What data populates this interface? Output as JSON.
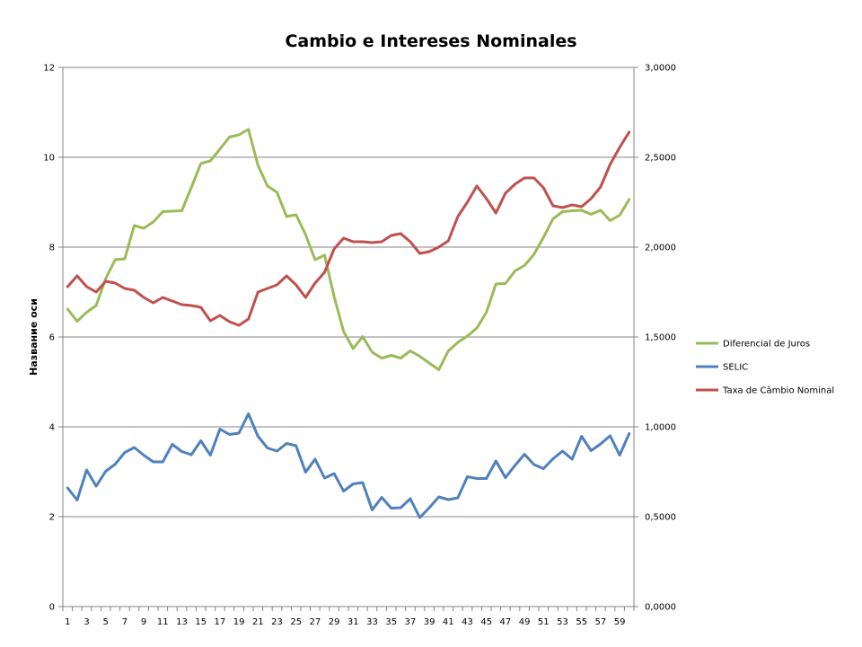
{
  "chart_data": {
    "type": "line",
    "title": "Cambio e Intereses Nominales",
    "ylabel": "Название оси",
    "ylim": [
      0,
      12
    ],
    "y2lim": [
      0,
      3
    ],
    "yticks": [
      "0",
      "2",
      "4",
      "6",
      "8",
      "10",
      "12"
    ],
    "y2ticks": [
      "0,0000",
      "0,5000",
      "1,0000",
      "1,5000",
      "2,0000",
      "2,5000",
      "3,0000"
    ],
    "xticks": [
      "1",
      "3",
      "5",
      "7",
      "9",
      "11",
      "13",
      "15",
      "17",
      "19",
      "21",
      "23",
      "25",
      "27",
      "29",
      "31",
      "33",
      "35",
      "37",
      "39",
      "41",
      "43",
      "45",
      "47",
      "49",
      "51",
      "53",
      "55",
      "57",
      "59"
    ],
    "grid": true,
    "legend_position": "right",
    "x": [
      1,
      2,
      3,
      4,
      5,
      6,
      7,
      8,
      9,
      10,
      11,
      12,
      13,
      14,
      15,
      16,
      17,
      18,
      19,
      20,
      21,
      22,
      23,
      24,
      25,
      26,
      27,
      28,
      29,
      30,
      31,
      32,
      33,
      34,
      35,
      36,
      37,
      38,
      39,
      40,
      41,
      42,
      43,
      44,
      45,
      46,
      47,
      48,
      49,
      50,
      51,
      52,
      53,
      54,
      55,
      56,
      57,
      58,
      59,
      60
    ],
    "series": [
      {
        "name": "Diferencial de Juros",
        "axis": "left",
        "color": "#9bbb59",
        "values": [
          6.62,
          6.35,
          6.55,
          6.7,
          7.3,
          7.72,
          7.74,
          8.48,
          8.42,
          8.56,
          8.79,
          8.8,
          8.81,
          9.33,
          9.86,
          9.92,
          10.18,
          10.45,
          10.5,
          10.62,
          9.82,
          9.36,
          9.22,
          8.68,
          8.72,
          8.28,
          7.72,
          7.82,
          6.9,
          6.12,
          5.74,
          6.01,
          5.66,
          5.53,
          5.59,
          5.53,
          5.69,
          5.57,
          5.42,
          5.27,
          5.69,
          5.88,
          6.02,
          6.2,
          6.55,
          7.18,
          7.19,
          7.47,
          7.59,
          7.84,
          8.22,
          8.63,
          8.79,
          8.81,
          8.82,
          8.73,
          8.82,
          8.59,
          8.71,
          9.06
        ]
      },
      {
        "name": "SELIC",
        "axis": "left",
        "color": "#4f81bd",
        "values": [
          2.64,
          2.37,
          3.04,
          2.68,
          3.01,
          3.17,
          3.43,
          3.54,
          3.37,
          3.22,
          3.22,
          3.61,
          3.45,
          3.38,
          3.69,
          3.37,
          3.95,
          3.83,
          3.86,
          4.29,
          3.79,
          3.53,
          3.46,
          3.63,
          3.58,
          2.99,
          3.28,
          2.86,
          2.96,
          2.57,
          2.73,
          2.76,
          2.15,
          2.43,
          2.19,
          2.2,
          2.4,
          1.98,
          2.2,
          2.44,
          2.38,
          2.42,
          2.89,
          2.85,
          2.85,
          3.24,
          2.87,
          3.14,
          3.39,
          3.16,
          3.07,
          3.29,
          3.46,
          3.28,
          3.79,
          3.47,
          3.62,
          3.8,
          3.37,
          3.85
        ]
      },
      {
        "name": "Taxa de Câmbio Nominal",
        "axis": "right",
        "color": "#c0504d",
        "values": [
          1.78,
          1.84,
          1.78,
          1.75,
          1.81,
          1.8,
          1.77,
          1.76,
          1.72,
          1.69,
          1.72,
          1.7,
          1.68,
          1.675,
          1.665,
          1.59,
          1.62,
          1.585,
          1.565,
          1.6,
          1.75,
          1.77,
          1.79,
          1.84,
          1.79,
          1.72,
          1.8,
          1.86,
          1.99,
          2.05,
          2.03,
          2.03,
          2.025,
          2.03,
          2.065,
          2.075,
          2.03,
          1.965,
          1.975,
          2,
          2.035,
          2.17,
          2.25,
          2.34,
          2.27,
          2.19,
          2.3,
          2.35,
          2.385,
          2.385,
          2.33,
          2.23,
          2.22,
          2.235,
          2.225,
          2.27,
          2.335,
          2.46,
          2.555,
          2.64
        ]
      }
    ]
  }
}
